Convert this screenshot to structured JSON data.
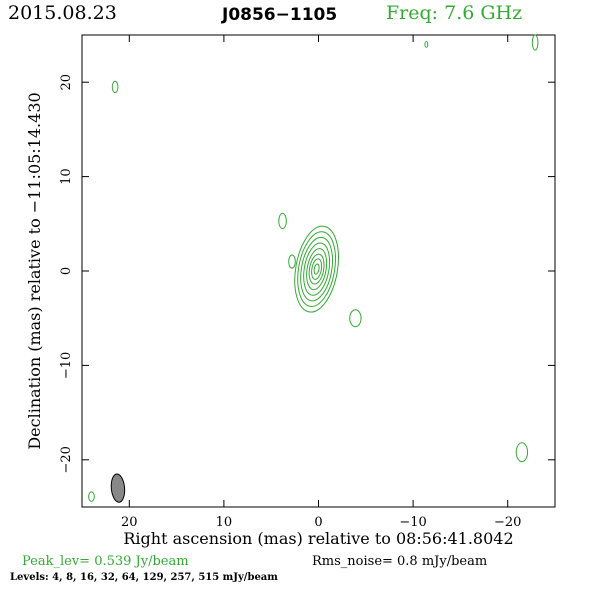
{
  "header": {
    "date": "2015.08.23",
    "source": "J0856−1105",
    "freq": "Freq: 7.6 GHz"
  },
  "footer": {
    "peak": "Peak_lev=  0.539 Jy/beam",
    "rms": "Rms_noise=  0.8 mJy/beam",
    "levels": "Levels:  4,  8,  16,  32,  64, 129, 257, 515 mJy/beam"
  },
  "colors": {
    "contour": "#33aa33",
    "beam_fill": "#888888",
    "frame": "#000000"
  },
  "chart_data": {
    "type": "contour",
    "xlabel": "Right ascension (mas) relative to 08:56:41.8042",
    "ylabel": "Declination (mas) relative to −11:05:14.430",
    "xlim": [
      25,
      -25
    ],
    "ylim": [
      -25,
      25
    ],
    "xticks": [
      20,
      10,
      0,
      -10,
      -20
    ],
    "xtick_labels": [
      "20",
      "10",
      "0",
      "−10",
      "−20"
    ],
    "yticks": [
      20,
      10,
      0,
      -10,
      -20
    ],
    "ytick_labels": [
      "20",
      "10",
      "0",
      "−10",
      "−20"
    ],
    "peak_jy_per_beam": 0.539,
    "rms_mjy_per_beam": 0.8,
    "levels_mjy_per_beam": [
      4,
      8,
      16,
      32,
      64,
      129,
      257,
      515
    ],
    "core": {
      "x": 0.2,
      "y": 0.2,
      "contours": [
        {
          "rx": 2.2,
          "ry": 4.6,
          "angle": 10
        },
        {
          "rx": 1.9,
          "ry": 4.0,
          "angle": 10
        },
        {
          "rx": 1.6,
          "ry": 3.4,
          "angle": 10
        },
        {
          "rx": 1.3,
          "ry": 2.8,
          "angle": 10
        },
        {
          "rx": 1.0,
          "ry": 2.2,
          "angle": 10
        },
        {
          "rx": 0.75,
          "ry": 1.6,
          "angle": 10
        },
        {
          "rx": 0.5,
          "ry": 1.1,
          "angle": 10
        },
        {
          "rx": 0.25,
          "ry": 0.55,
          "angle": 10
        }
      ]
    },
    "components": [
      {
        "x": 3.8,
        "y": 5.3,
        "rx": 0.4,
        "ry": 0.8
      },
      {
        "x": 2.8,
        "y": 1.0,
        "rx": 0.35,
        "ry": 0.7
      },
      {
        "x": -3.9,
        "y": -5.0,
        "rx": 0.6,
        "ry": 0.9
      },
      {
        "x": 21.5,
        "y": 19.5,
        "rx": 0.3,
        "ry": 0.6
      },
      {
        "x": -11.4,
        "y": 24.0,
        "rx": 0.15,
        "ry": 0.3
      },
      {
        "x": -22.9,
        "y": 24.2,
        "rx": 0.3,
        "ry": 0.8
      },
      {
        "x": -21.5,
        "y": -19.2,
        "rx": 0.6,
        "ry": 1.0
      },
      {
        "x": 24.0,
        "y": -23.9,
        "rx": 0.3,
        "ry": 0.5
      }
    ],
    "beam": {
      "x": 21.2,
      "y": -23.0,
      "rx": 0.7,
      "ry": 1.5,
      "angle": -5
    }
  }
}
